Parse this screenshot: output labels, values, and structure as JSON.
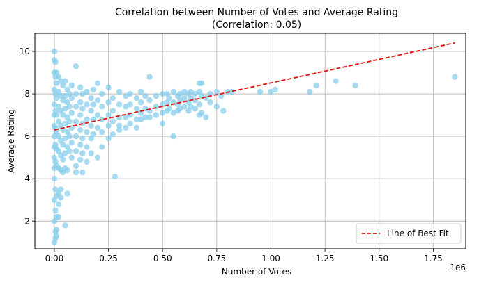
{
  "chart_data": {
    "type": "scatter",
    "title": "Correlation between Number of Votes and Average Rating",
    "subtitle": "(Correlation: 0.05)",
    "xlabel": "Number of Votes",
    "ylabel": "Average Rating",
    "x_offset_label": "1e6",
    "xlim": [
      -0.09,
      1.9
    ],
    "ylim": [
      0.7,
      10.85
    ],
    "x_ticks": [
      0.0,
      0.25,
      0.5,
      0.75,
      1.0,
      1.25,
      1.5,
      1.75
    ],
    "x_tick_labels": [
      "0.00",
      "0.25",
      "0.50",
      "0.75",
      "1.00",
      "1.25",
      "1.50",
      "1.75"
    ],
    "y_ticks": [
      2,
      4,
      6,
      8,
      10
    ],
    "y_tick_labels": [
      "2",
      "4",
      "6",
      "8",
      "10"
    ],
    "grid": true,
    "legend_position": "bottom-right",
    "series": [
      {
        "name": "",
        "kind": "scatter",
        "color": "#87ceeb",
        "x": [
          0.0,
          0.0,
          0.0,
          0.0,
          0.0,
          0.0,
          0.0,
          0.0,
          0.0,
          0.0,
          0.0,
          0.0,
          0.0,
          0.0,
          0.0,
          0.005,
          0.005,
          0.005,
          0.005,
          0.005,
          0.005,
          0.005,
          0.005,
          0.005,
          0.005,
          0.01,
          0.01,
          0.01,
          0.01,
          0.01,
          0.01,
          0.01,
          0.01,
          0.01,
          0.01,
          0.02,
          0.02,
          0.02,
          0.02,
          0.02,
          0.02,
          0.02,
          0.02,
          0.02,
          0.03,
          0.03,
          0.03,
          0.03,
          0.03,
          0.03,
          0.03,
          0.03,
          0.04,
          0.04,
          0.04,
          0.04,
          0.04,
          0.04,
          0.04,
          0.05,
          0.05,
          0.05,
          0.05,
          0.05,
          0.05,
          0.05,
          0.05,
          0.06,
          0.06,
          0.06,
          0.06,
          0.06,
          0.06,
          0.07,
          0.07,
          0.07,
          0.07,
          0.07,
          0.08,
          0.08,
          0.08,
          0.08,
          0.08,
          0.08,
          0.1,
          0.1,
          0.1,
          0.1,
          0.1,
          0.1,
          0.1,
          0.12,
          0.12,
          0.12,
          0.12,
          0.12,
          0.12,
          0.13,
          0.13,
          0.13,
          0.13,
          0.13,
          0.15,
          0.15,
          0.15,
          0.15,
          0.15,
          0.15,
          0.17,
          0.17,
          0.17,
          0.17,
          0.17,
          0.18,
          0.18,
          0.18,
          0.18,
          0.2,
          0.2,
          0.2,
          0.2,
          0.2,
          0.22,
          0.22,
          0.22,
          0.22,
          0.22,
          0.25,
          0.25,
          0.25,
          0.25,
          0.25,
          0.27,
          0.27,
          0.27,
          0.27,
          0.3,
          0.3,
          0.3,
          0.3,
          0.3,
          0.33,
          0.33,
          0.33,
          0.33,
          0.35,
          0.35,
          0.35,
          0.35,
          0.38,
          0.38,
          0.38,
          0.38,
          0.4,
          0.4,
          0.4,
          0.4,
          0.42,
          0.42,
          0.42,
          0.44,
          0.44,
          0.44,
          0.44,
          0.47,
          0.47,
          0.47,
          0.5,
          0.5,
          0.5,
          0.5,
          0.52,
          0.52,
          0.52,
          0.53,
          0.53,
          0.55,
          0.55,
          0.55,
          0.55,
          0.57,
          0.57,
          0.57,
          0.58,
          0.58,
          0.58,
          0.6,
          0.6,
          0.6,
          0.62,
          0.62,
          0.62,
          0.63,
          0.63,
          0.63,
          0.65,
          0.65,
          0.65,
          0.67,
          0.67,
          0.67,
          0.67,
          0.68,
          0.68,
          0.68,
          0.7,
          0.7,
          0.72,
          0.72,
          0.75,
          0.75,
          0.77,
          0.78,
          0.8,
          0.82,
          0.95,
          1.0,
          1.02,
          1.18,
          1.21,
          1.3,
          1.39,
          1.85,
          0.1,
          0.28,
          0.13,
          0.01,
          0.02,
          0.06,
          0.03,
          0.005
        ],
        "y": [
          10.0,
          9.6,
          9.0,
          8.2,
          7.5,
          7.0,
          6.5,
          6.0,
          5.5,
          5.0,
          4.5,
          4.0,
          3.0,
          2.0,
          1.0,
          9.5,
          8.8,
          8.0,
          7.2,
          6.4,
          5.6,
          4.8,
          3.5,
          2.5,
          1.5,
          9.0,
          8.5,
          7.8,
          7.0,
          6.2,
          5.4,
          4.6,
          3.2,
          2.2,
          1.3,
          8.8,
          8.1,
          7.4,
          6.7,
          6.0,
          5.3,
          4.5,
          3.3,
          2.8,
          8.6,
          7.9,
          7.2,
          6.5,
          5.8,
          5.1,
          4.4,
          3.5,
          8.4,
          7.7,
          7.0,
          6.3,
          5.6,
          4.9,
          4.3,
          8.6,
          7.9,
          7.3,
          6.6,
          5.9,
          5.2,
          4.5,
          1.8,
          8.2,
          7.6,
          6.9,
          6.2,
          5.5,
          4.4,
          8.0,
          7.4,
          6.7,
          6.0,
          5.3,
          8.4,
          7.8,
          7.1,
          6.4,
          5.7,
          5.0,
          8.0,
          7.4,
          6.7,
          6.0,
          5.3,
          4.6,
          4.3,
          8.3,
          7.6,
          7.0,
          6.3,
          5.6,
          4.9,
          8.0,
          7.3,
          6.6,
          5.9,
          5.2,
          8.1,
          7.5,
          6.8,
          6.2,
          5.5,
          4.8,
          7.8,
          7.2,
          6.5,
          5.9,
          5.2,
          8.2,
          7.5,
          6.8,
          6.1,
          8.5,
          7.7,
          7.0,
          6.4,
          5.0,
          8.0,
          7.4,
          6.8,
          6.2,
          5.5,
          8.3,
          7.6,
          7.0,
          6.5,
          5.9,
          7.8,
          7.2,
          6.7,
          6.1,
          8.1,
          7.5,
          6.9,
          6.5,
          6.3,
          7.9,
          7.4,
          6.9,
          6.4,
          8.0,
          7.5,
          7.0,
          6.6,
          7.8,
          7.3,
          6.8,
          6.4,
          8.1,
          7.6,
          7.1,
          6.8,
          7.9,
          7.3,
          6.9,
          8.8,
          7.7,
          7.2,
          6.9,
          7.9,
          7.4,
          7.0,
          8.0,
          7.5,
          7.1,
          6.6,
          8.0,
          7.6,
          7.2,
          7.8,
          7.3,
          8.1,
          7.6,
          7.1,
          6.0,
          7.9,
          7.5,
          7.2,
          8.0,
          7.7,
          7.3,
          8.1,
          7.8,
          7.4,
          8.0,
          7.6,
          7.2,
          8.1,
          7.8,
          7.4,
          8.0,
          7.7,
          7.3,
          8.5,
          8.1,
          7.5,
          7.0,
          8.5,
          7.9,
          7.1,
          7.8,
          6.9,
          8.0,
          7.6,
          8.1,
          7.4,
          7.9,
          7.2,
          8.1,
          8.1,
          8.1,
          8.1,
          8.2,
          8.1,
          8.4,
          8.6,
          8.4,
          8.8,
          9.3,
          4.1,
          4.3,
          1.6,
          2.2,
          3.3,
          3.1,
          1.2
        ]
      },
      {
        "name": "Line of Best Fit",
        "kind": "line",
        "color": "#e3120b",
        "style": "dashed",
        "x": [
          0.0,
          1.85
        ],
        "y": [
          6.3,
          10.4
        ]
      }
    ]
  }
}
